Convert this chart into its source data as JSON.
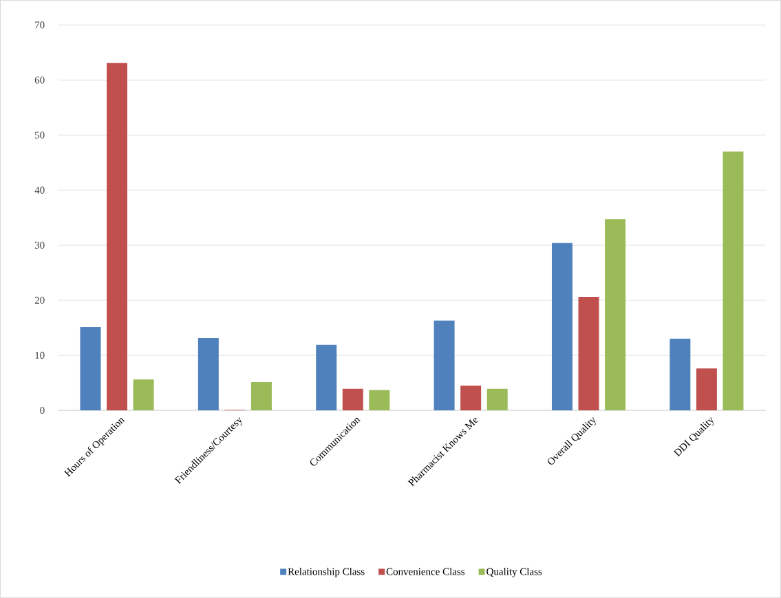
{
  "chart_data": {
    "type": "bar",
    "categories": [
      "Hours of Operation",
      "Friendliness/Courtesy",
      "Communication",
      "Pharmacist Knows Me",
      "Overall Quality",
      "DDI Quality"
    ],
    "series": [
      {
        "name": "Relationship Class",
        "color": "#4f81bd",
        "values": [
          15.1,
          13.1,
          11.9,
          16.3,
          30.4,
          13.0
        ]
      },
      {
        "name": "Convenience Class",
        "color": "#c0504d",
        "values": [
          63.1,
          0.1,
          3.9,
          4.5,
          20.6,
          7.6
        ]
      },
      {
        "name": "Quality Class",
        "color": "#9bbb59",
        "values": [
          5.6,
          5.1,
          3.7,
          3.9,
          34.7,
          47.0
        ]
      }
    ],
    "ylim": [
      0,
      70
    ],
    "yticks": [
      0,
      10,
      20,
      30,
      40,
      50,
      60,
      70
    ],
    "grid": "y",
    "legend": "bottom"
  }
}
